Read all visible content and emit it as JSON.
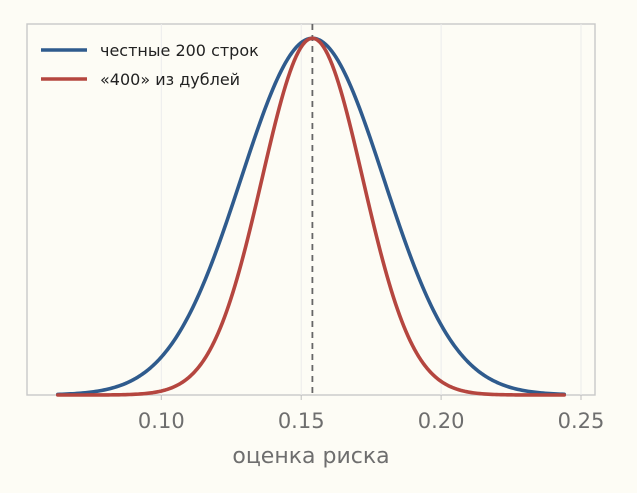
{
  "chart_data": {
    "type": "line",
    "xlabel": "оценка риска",
    "ylabel": "",
    "xlim": [
      0.052,
      0.255
    ],
    "ylim": [
      0,
      1.04
    ],
    "xticks": [
      0.1,
      0.15,
      0.2,
      0.25
    ],
    "xtick_labels": [
      "0.10",
      "0.15",
      "0.20",
      "0.25"
    ],
    "yticks_shown": false,
    "grid": "vertical, faint",
    "legend_position": "top-left",
    "vline": {
      "x": 0.154,
      "style": "dashed",
      "color": "#666666"
    },
    "x_range": [
      0.063,
      0.244
    ],
    "series": [
      {
        "name": "честные 200 строк",
        "color": "#2f5b8d",
        "mean": 0.154,
        "sd": 0.0255,
        "peak": 1.0
      },
      {
        "name": "«400» из дублей",
        "color": "#b5463f",
        "mean": 0.154,
        "sd": 0.018,
        "peak": 1.0
      }
    ]
  }
}
